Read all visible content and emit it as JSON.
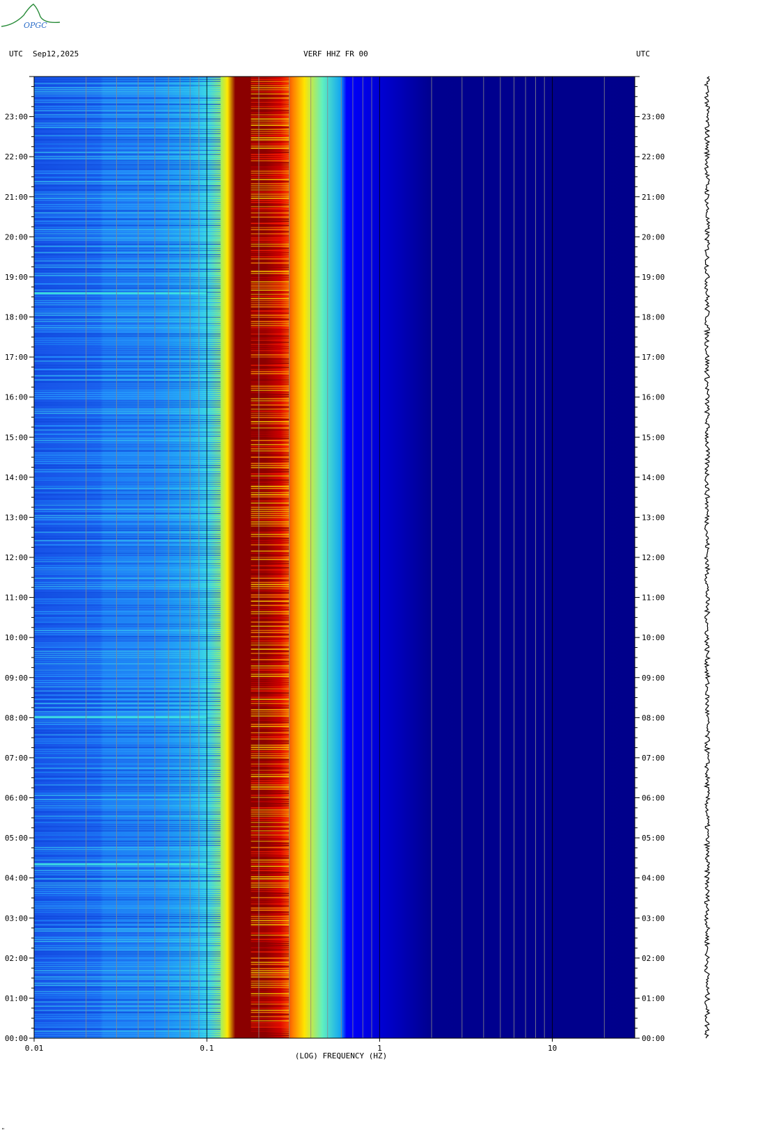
{
  "logo": {
    "text": "OPGC",
    "color": "#2a8c3a"
  },
  "header": {
    "left_tz": "UTC",
    "date": "Sep12,2025",
    "station": "VERF HHZ FR 00",
    "right_tz": "UTC"
  },
  "footer_mark": "\"",
  "chart_data": {
    "type": "heatmap",
    "title": "VERF HHZ FR 00",
    "xlabel": "(LOG) FREQUENCY (HZ)",
    "ylabel": "",
    "x_scale": "log",
    "xlim": [
      0.01,
      30
    ],
    "x_ticks": [
      {
        "value": 0.01,
        "label": "0.01"
      },
      {
        "value": 0.1,
        "label": "0.1"
      },
      {
        "value": 1,
        "label": "1"
      },
      {
        "value": 10,
        "label": "10"
      }
    ],
    "ylim_hours": [
      0,
      24
    ],
    "y_ticks": [
      "00:00",
      "01:00",
      "02:00",
      "03:00",
      "04:00",
      "05:00",
      "06:00",
      "07:00",
      "08:00",
      "09:00",
      "10:00",
      "11:00",
      "12:00",
      "13:00",
      "14:00",
      "15:00",
      "16:00",
      "17:00",
      "18:00",
      "19:00",
      "20:00",
      "21:00",
      "22:00",
      "23:00"
    ],
    "colormap": [
      "#00008b",
      "#0000ff",
      "#1e90ff",
      "#00ffff",
      "#adff2f",
      "#ffff00",
      "#ff8c00",
      "#ff0000",
      "#8b0000"
    ],
    "dominant_band_hz": [
      0.14,
      0.3
    ],
    "events": [
      {
        "time": "04:20",
        "description": "broadband energy increase"
      },
      {
        "time": "18:35",
        "description": "low-frequency energy increase"
      },
      {
        "time": "08:00",
        "description": "low-frequency energy increase"
      }
    ]
  }
}
